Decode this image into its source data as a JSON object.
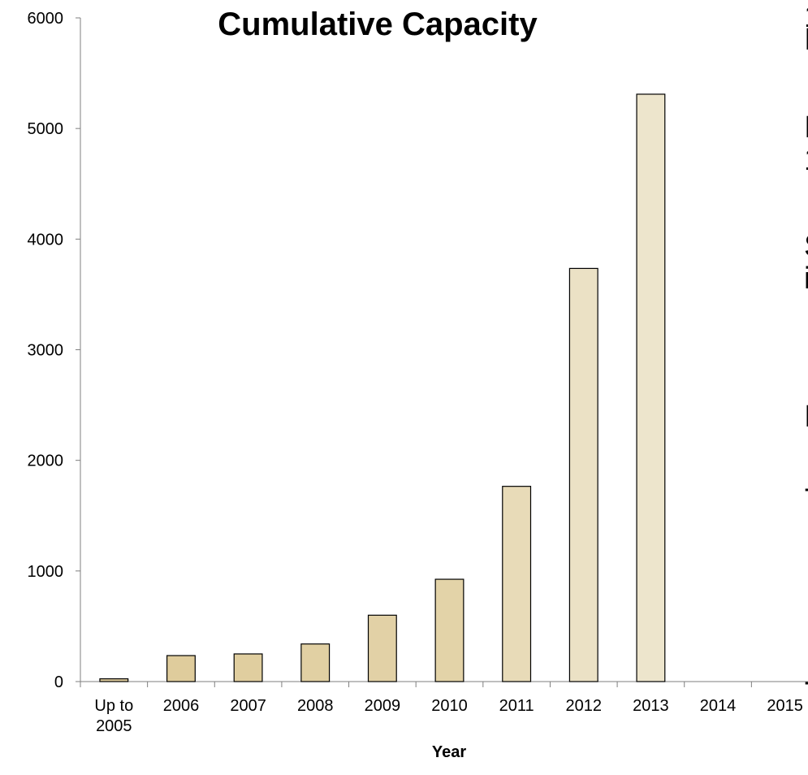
{
  "chart_data": {
    "type": "bar",
    "title": "Cumulative Capacity",
    "xlabel": "Year",
    "ylabel": "",
    "ylim": [
      0,
      6000
    ],
    "yticks": [
      0,
      1000,
      2000,
      3000,
      4000,
      5000,
      6000
    ],
    "categories": [
      "Up to 2005",
      "2006",
      "2007",
      "2008",
      "2009",
      "2010",
      "2011",
      "2012",
      "2013",
      "2014",
      "2015"
    ],
    "category_lines": [
      [
        "Up to",
        "2005"
      ],
      [
        "2006"
      ],
      [
        "2007"
      ],
      [
        "2008"
      ],
      [
        "2009"
      ],
      [
        "2010"
      ],
      [
        "2011"
      ],
      [
        "2012"
      ],
      [
        "2013"
      ],
      [
        "2014"
      ],
      [
        "2015"
      ]
    ],
    "values": [
      25,
      235,
      250,
      340,
      600,
      925,
      1765,
      3735,
      5310,
      null,
      null
    ],
    "bar_colors": [
      "#dfcc9c",
      "#dfcc9c",
      "#e0ce9f",
      "#e1d0a3",
      "#e2d1a6",
      "#e3d3a8",
      "#e8dbb8",
      "#ebe1c5",
      "#ede5cc",
      null,
      null
    ],
    "grid": false,
    "legend": "none"
  },
  "right_edge_fragments": [
    "1",
    "I",
    "I",
    "1",
    "S",
    "i",
    "I",
    "-",
    "-"
  ]
}
